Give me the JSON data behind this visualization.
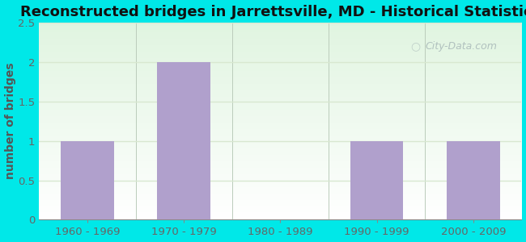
{
  "title": "Reconstructed bridges in Jarrettsville, MD - Historical Statistics",
  "categories": [
    "1960 - 1969",
    "1970 - 1979",
    "1980 - 1989",
    "1990 - 1999",
    "2000 - 2009"
  ],
  "values": [
    1,
    2,
    0,
    1,
    1
  ],
  "bar_color": "#b0a0cc",
  "ylabel": "number of bridges",
  "ylim": [
    0,
    2.5
  ],
  "yticks": [
    0,
    0.5,
    1,
    1.5,
    2,
    2.5
  ],
  "title_fontsize": 13,
  "ylabel_fontsize": 10,
  "tick_fontsize": 9.5,
  "bg_outer": "#00e8e8",
  "watermark": "City-Data.com",
  "watermark_color": "#a8b8b8",
  "ylabel_color": "#555555",
  "tick_color": "#666666",
  "title_color": "#111111",
  "grid_color": "#d8e8d0",
  "plot_bg_color1": "#e8f8e0",
  "plot_bg_color2": "#f8fff8"
}
